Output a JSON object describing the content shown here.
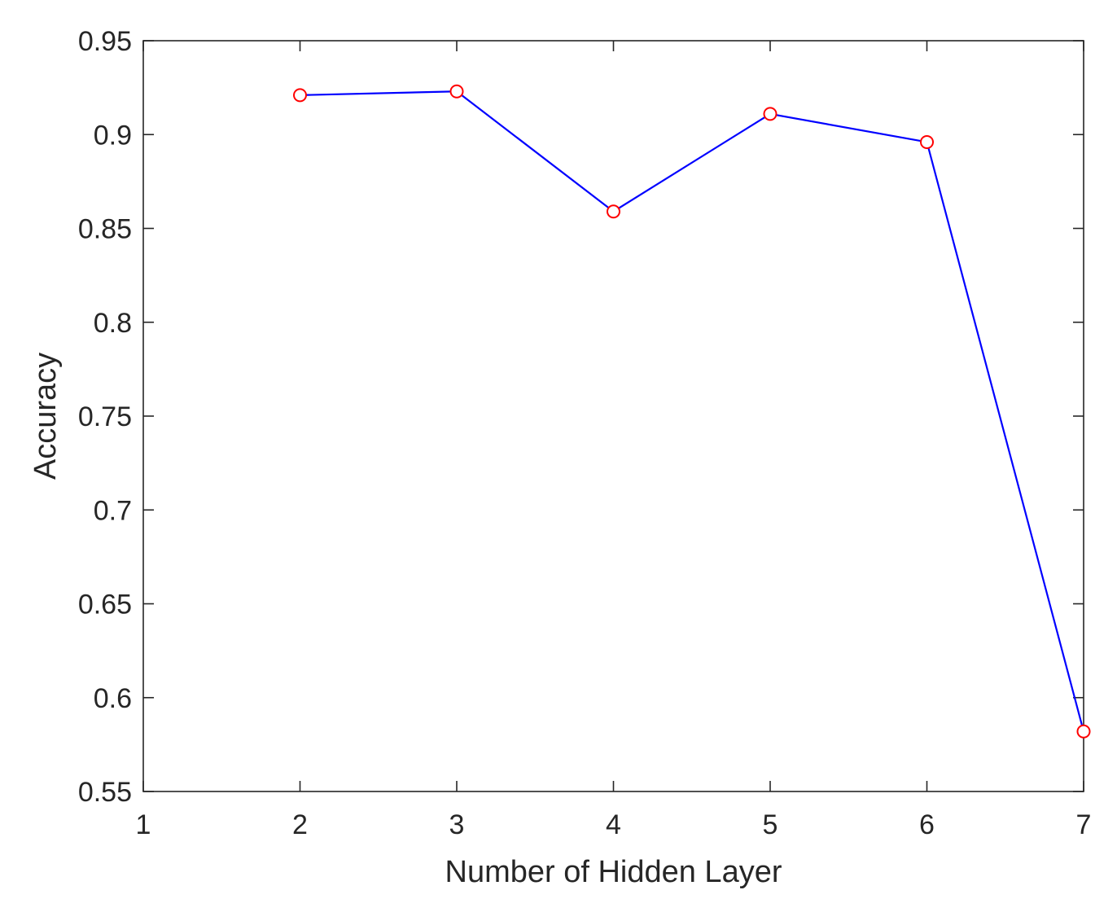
{
  "chart_data": {
    "type": "line",
    "title": "",
    "xlabel": "Number of Hidden Layer",
    "ylabel": "Accuracy",
    "xlim": [
      1,
      7
    ],
    "ylim": [
      0.55,
      0.95
    ],
    "xticks": [
      1,
      2,
      3,
      4,
      5,
      6,
      7
    ],
    "xtick_labels": [
      "1",
      "2",
      "3",
      "4",
      "5",
      "6",
      "7"
    ],
    "yticks": [
      0.55,
      0.6,
      0.65,
      0.7,
      0.75,
      0.8,
      0.85,
      0.9,
      0.95
    ],
    "ytick_labels": [
      "0.55",
      "0.6",
      "0.65",
      "0.7",
      "0.75",
      "0.8",
      "0.85",
      "0.9",
      "0.95"
    ],
    "grid": false,
    "box": true,
    "series": [
      {
        "x": [
          2,
          3,
          4,
          5,
          6,
          7
        ],
        "y": [
          0.921,
          0.923,
          0.859,
          0.911,
          0.896,
          0.582
        ],
        "line_color": "#0000ff",
        "marker": "circle",
        "marker_color": "#ff0000"
      }
    ]
  }
}
